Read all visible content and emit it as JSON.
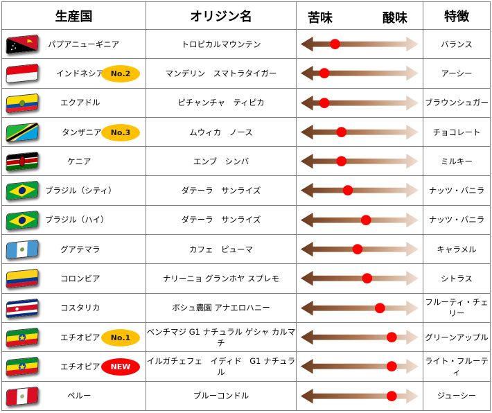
{
  "headers": {
    "country": "生産国",
    "origin": "オリジン名",
    "bitter": "苦味",
    "acidity": "酸味",
    "feature": "特徴"
  },
  "rows": [
    {
      "country": "パプアニューギニア",
      "origin": "トロピカルマウンテン",
      "feature": "バランス",
      "taste": 0.27,
      "badge": "",
      "flag": "papua-new-guinea-flag"
    },
    {
      "country": "インドネシア",
      "origin": "マンデリン　スマトラタイガー",
      "feature": "アーシー",
      "taste": 0.17,
      "badge": "No.2",
      "badge_color": "#ffc000",
      "flag": "indonesia-flag"
    },
    {
      "country": "エクアドル",
      "origin": "ピチャンチャ　ティピカ",
      "feature": "ブラウンシュガー",
      "taste": 0.17,
      "badge": "",
      "flag": "ecuador-flag"
    },
    {
      "country": "タンザニア",
      "origin": "ムウィカ　ノース",
      "feature": "チョコレート",
      "taste": 0.33,
      "badge": "No.3",
      "badge_color": "#ffc000",
      "flag": "tanzania-flag"
    },
    {
      "country": "ケニア",
      "origin": "エンブ　シンバ",
      "feature": "ミルキー",
      "taste": 0.33,
      "badge": "",
      "flag": "kenya-flag"
    },
    {
      "country": "ブラジル（シティ）",
      "origin": "ダテーラ　サンライズ",
      "feature": "ナッツ・バニラ",
      "taste": 0.39,
      "badge": "",
      "flag": "brazil-flag"
    },
    {
      "country": "ブラジル（ハイ）",
      "origin": "ダテーラ　サンライズ",
      "feature": "ナッツ・バニラ",
      "taste": 0.56,
      "badge": "",
      "flag": "brazil-flag"
    },
    {
      "country": "グアテマラ",
      "origin": "カフェ　ピューマ",
      "feature": "キャラメル",
      "taste": 0.48,
      "badge": "",
      "flag": "guatemala-flag"
    },
    {
      "country": "コロンビア",
      "origin": "ナリーニョ グランホヤ スプレモ",
      "feature": "シトラス",
      "taste": 0.57,
      "badge": "",
      "flag": "colombia-flag"
    },
    {
      "country": "コスタリカ",
      "origin": "ボシュ農園 アナエロハニー",
      "feature": "フルーティ・チェリー",
      "taste": 0.69,
      "badge": "",
      "flag": "costa-rica-flag"
    },
    {
      "country": "エチオピア",
      "origin": "ベンチマジ G1 ナチュラル ゲシャ カルマチ",
      "feature": "グリーンアップル",
      "taste": 0.8,
      "badge": "No.1",
      "badge_color": "#ffc000",
      "flag": "ethiopia-flag"
    },
    {
      "country": "エチオピア",
      "origin": "イルガチェフェ　イディド　G1 ナチュラル",
      "feature": "ライト・フルーティ",
      "taste": 0.8,
      "badge": "NEW",
      "badge_color": "#ff0000",
      "flag": "ethiopia-flag"
    },
    {
      "country": "ペルー",
      "origin": "ブルーコンドル",
      "feature": "ジューシー",
      "taste": 0.8,
      "badge": "",
      "flag": "peru-flag"
    }
  ]
}
